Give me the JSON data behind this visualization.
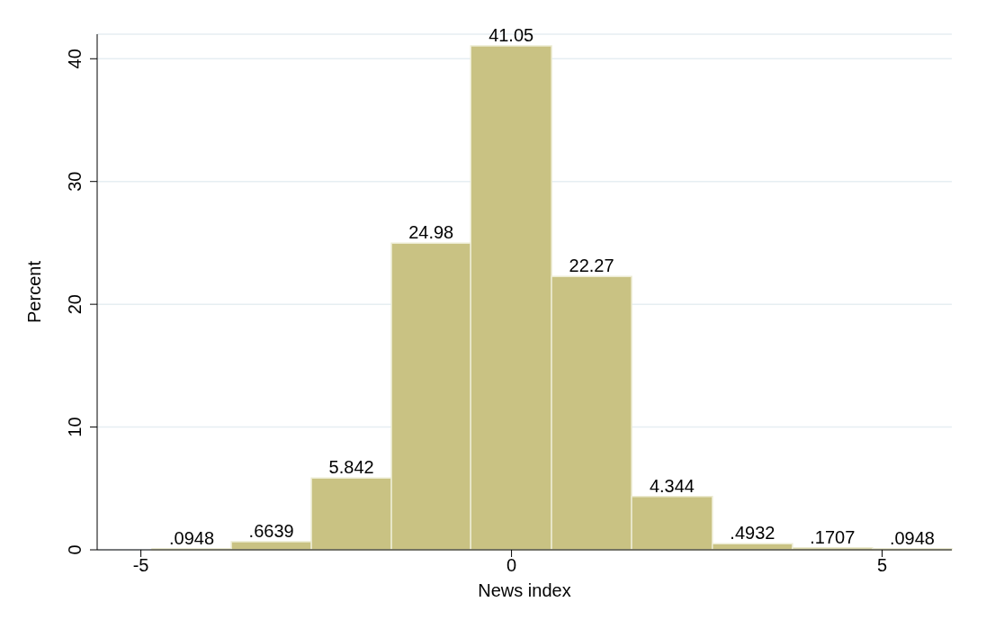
{
  "chart_data": {
    "type": "histogram",
    "xlabel": "News index",
    "ylabel": "Percent",
    "bins": [
      -4.85,
      -3.78,
      -2.7,
      -1.62,
      -0.55,
      0.54,
      1.62,
      2.71,
      3.79,
      4.87,
      5.94
    ],
    "values": [
      0.0948,
      0.6639,
      5.842,
      24.98,
      41.05,
      22.27,
      4.344,
      0.4932,
      0.1707,
      0.0948
    ],
    "value_labels": [
      ".0948",
      ".6639",
      "5.842",
      "24.98",
      "41.05",
      "22.27",
      "4.344",
      ".4932",
      ".1707",
      ".0948"
    ],
    "color": "#c9c283",
    "xlim": [
      -5.59,
      5.94
    ],
    "xticks": [
      -5,
      0,
      5
    ],
    "ylim": [
      0,
      42
    ],
    "yticks": [
      0,
      10,
      20,
      30,
      40
    ],
    "grid": "y"
  }
}
